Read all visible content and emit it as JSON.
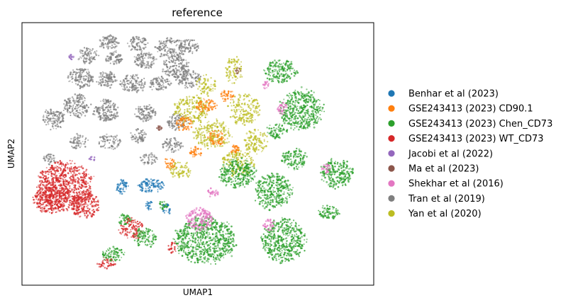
{
  "chart_data": {
    "type": "scatter",
    "title": "reference",
    "xlabel": "UMAP1",
    "ylabel": "UMAP2",
    "grid": false,
    "x_ticks": false,
    "y_ticks": false,
    "legend_placement": "right",
    "series": [
      {
        "name": "Benhar et al (2023)",
        "color": "#1f77b4"
      },
      {
        "name": "GSE243413 (2023) CD90.1",
        "color": "#ff7f0e"
      },
      {
        "name": "GSE243413 (2023) Chen_CD73",
        "color": "#2ca02c"
      },
      {
        "name": "GSE243413 (2023) WT_CD73",
        "color": "#d62728"
      },
      {
        "name": "Jacobi et al (2022)",
        "color": "#9467bd"
      },
      {
        "name": "Ma et al (2023)",
        "color": "#8c564b"
      },
      {
        "name": "Shekhar et al (2016)",
        "color": "#e377c2"
      },
      {
        "name": "Tran et al (2019)",
        "color": "#7f7f7f"
      },
      {
        "name": "Yan et al (2020)",
        "color": "#bcbd22"
      }
    ]
  }
}
